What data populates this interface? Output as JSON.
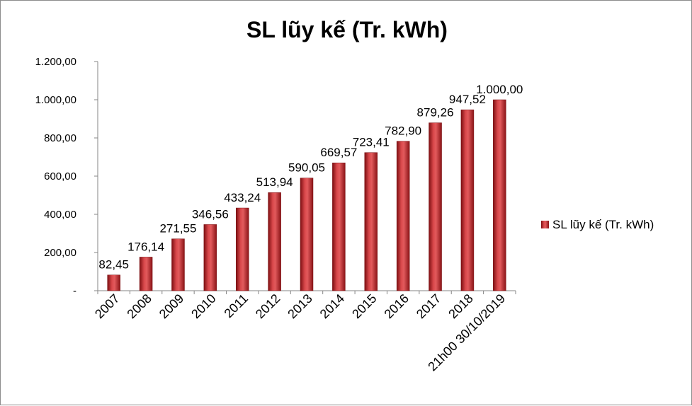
{
  "chart_data": {
    "type": "bar",
    "title": "SL lũy kế (Tr. kWh)",
    "categories": [
      "2007",
      "2008",
      "2009",
      "2010",
      "2011",
      "2012",
      "2013",
      "2014",
      "2015",
      "2016",
      "2017",
      "2018",
      "21h00 30/10/2019"
    ],
    "series": [
      {
        "name": "SL lũy kế (Tr. kWh)",
        "values": [
          82.45,
          176.14,
          271.55,
          346.56,
          433.24,
          513.94,
          590.05,
          669.57,
          723.41,
          782.9,
          879.26,
          947.52,
          1000.0
        ],
        "value_labels": [
          "82,45",
          "176,14",
          "271,55",
          "346,56",
          "433,24",
          "513,94",
          "590,05",
          "669,57",
          "723,41",
          "782,90",
          "879,26",
          "947,52",
          "1.000,00"
        ],
        "color": "#c0282d"
      }
    ],
    "ylim": [
      0,
      1200
    ],
    "yticks": [
      0,
      200,
      400,
      600,
      800,
      1000,
      1200
    ],
    "ytick_labels": [
      "-",
      "200,00",
      "400,00",
      "600,00",
      "800,00",
      "1.000,00",
      "1.200,00"
    ],
    "grid": false,
    "legend_position": "right"
  }
}
